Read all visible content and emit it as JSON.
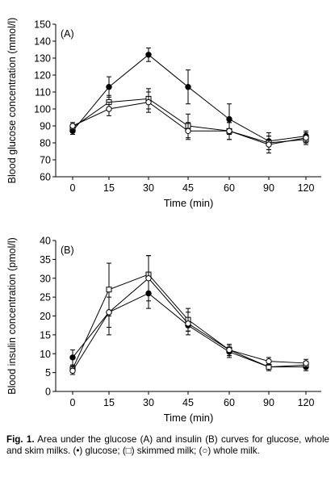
{
  "chart_data": [
    {
      "type": "line",
      "panel_label": "(A)",
      "ylabel": "Blood glucose concentration (mmol/l)",
      "xlabel": "Time (min)",
      "categories": [
        "0",
        "15",
        "30",
        "45",
        "60",
        "90",
        "120"
      ],
      "ylim": [
        60,
        150
      ],
      "yticks": [
        60,
        70,
        80,
        90,
        100,
        110,
        120,
        130,
        140,
        150
      ],
      "series": [
        {
          "marker": "filled-circle",
          "values": [
            87,
            113,
            132,
            113,
            94,
            81,
            84
          ],
          "error": [
            2,
            6,
            4,
            10,
            9,
            5,
            3
          ]
        },
        {
          "marker": "open-square",
          "values": [
            89,
            104,
            106,
            90,
            87,
            80,
            82
          ],
          "error": [
            2,
            4,
            6,
            7,
            5,
            4,
            3
          ]
        },
        {
          "marker": "open-circle",
          "values": [
            90,
            100,
            104,
            87,
            87,
            79,
            83
          ],
          "error": [
            2,
            4,
            6,
            5,
            5,
            5,
            3
          ]
        }
      ]
    },
    {
      "type": "line",
      "panel_label": "(B)",
      "ylabel": "Blood insulin concentration (pmol/l)",
      "xlabel": "Time (min)",
      "categories": [
        "0",
        "15",
        "30",
        "45",
        "60",
        "90",
        "120"
      ],
      "ylim": [
        0,
        40
      ],
      "yticks": [
        0,
        5,
        10,
        15,
        20,
        25,
        30,
        35,
        40
      ],
      "series": [
        {
          "marker": "filled-circle",
          "values": [
            9,
            21,
            26,
            17.5,
            10.5,
            6.5,
            6.5
          ],
          "error": [
            2,
            6,
            4,
            1.5,
            1.5,
            0.5,
            1
          ]
        },
        {
          "marker": "open-square",
          "values": [
            6,
            27,
            31,
            19,
            11,
            6.5,
            7
          ],
          "error": [
            1,
            7,
            5,
            3,
            1.5,
            1,
            1
          ]
        },
        {
          "marker": "open-circle",
          "values": [
            5.5,
            21,
            30,
            18,
            11,
            8,
            7.5
          ],
          "error": [
            1,
            4,
            6,
            3,
            1.5,
            1,
            1
          ]
        }
      ]
    }
  ],
  "caption": {
    "label": "Fig. 1.",
    "text": "Area under the glucose (A) and insulin (B) curves for glucose, whole and skim milks. (•) glucose; (□) skimmed milk; (○) whole milk."
  }
}
